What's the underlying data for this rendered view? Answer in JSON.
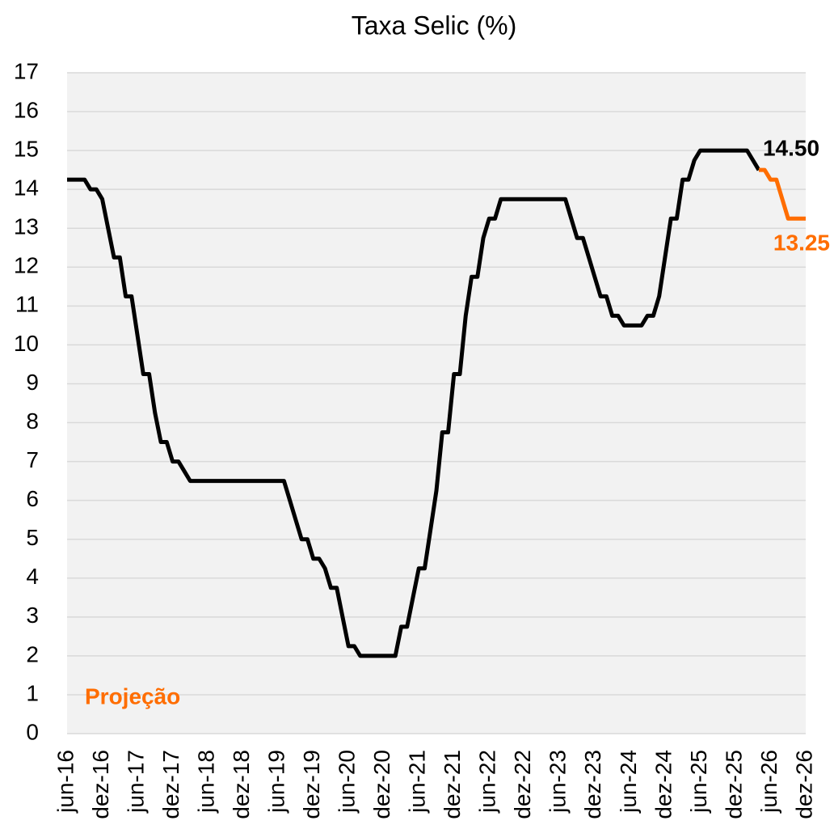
{
  "chart_data": {
    "type": "line",
    "title": "Taxa Selic (%)",
    "categories": [
      "jun-16",
      null,
      null,
      null,
      null,
      null,
      "dez-16",
      null,
      null,
      null,
      null,
      null,
      "jun-17",
      null,
      null,
      null,
      null,
      null,
      "dez-17",
      null,
      null,
      null,
      null,
      null,
      "jun-18",
      null,
      null,
      null,
      null,
      null,
      "dez-18",
      null,
      null,
      null,
      null,
      null,
      "jun-19",
      null,
      null,
      null,
      null,
      null,
      "dez-19",
      null,
      null,
      null,
      null,
      null,
      "jun-20",
      null,
      null,
      null,
      null,
      null,
      "dez-20",
      null,
      null,
      null,
      null,
      null,
      "jun-21",
      null,
      null,
      null,
      null,
      null,
      "dez-21",
      null,
      null,
      null,
      null,
      null,
      "jun-22",
      null,
      null,
      null,
      null,
      null,
      "dez-22",
      null,
      null,
      null,
      null,
      null,
      "jun-23",
      null,
      null,
      null,
      null,
      null,
      "dez-23",
      null,
      null,
      null,
      null,
      null,
      "jun-24",
      null,
      null,
      null,
      null,
      null,
      "dez-24",
      null,
      null,
      null,
      null,
      null,
      "jun-25",
      null,
      null,
      null,
      null,
      null,
      "dez-25",
      null,
      null,
      null,
      null,
      null,
      "jun-26",
      null,
      null,
      null,
      null,
      null,
      "dez-26"
    ],
    "series": [
      {
        "color": "#000000",
        "values": [
          14.25,
          14.25,
          14.25,
          14.25,
          14,
          14,
          13.75,
          13,
          12.25,
          12.25,
          11.25,
          11.25,
          10.25,
          9.25,
          9.25,
          8.25,
          7.5,
          7.5,
          7,
          7,
          6.75,
          6.5,
          6.5,
          6.5,
          6.5,
          6.5,
          6.5,
          6.5,
          6.5,
          6.5,
          6.5,
          6.5,
          6.5,
          6.5,
          6.5,
          6.5,
          6.5,
          6.5,
          6,
          5.5,
          5,
          5,
          4.5,
          4.5,
          4.25,
          3.75,
          3.75,
          3,
          2.25,
          2.25,
          2,
          2,
          2,
          2,
          2,
          2,
          2,
          2.75,
          2.75,
          3.5,
          4.25,
          4.25,
          5.25,
          6.25,
          7.75,
          7.75,
          9.25,
          9.25,
          10.75,
          11.75,
          11.75,
          12.75,
          13.25,
          13.25,
          13.75,
          13.75,
          13.75,
          13.75,
          13.75,
          13.75,
          13.75,
          13.75,
          13.75,
          13.75,
          13.75,
          13.75,
          13.25,
          12.75,
          12.75,
          12.25,
          11.75,
          11.25,
          11.25,
          10.75,
          10.75,
          10.5,
          10.5,
          10.5,
          10.5,
          10.75,
          10.75,
          11.25,
          12.25,
          13.25,
          13.25,
          14.25,
          14.25,
          14.75,
          15,
          15,
          15,
          15,
          15,
          15,
          15,
          15,
          15,
          14.75,
          14.5,
          null,
          null,
          null,
          null,
          null,
          null,
          null,
          null
        ],
        "value_labels": [
          null,
          null,
          null,
          null,
          null,
          null,
          null,
          null,
          null,
          null,
          null,
          null,
          null,
          null,
          null,
          null,
          null,
          null,
          null,
          null,
          null,
          null,
          null,
          null,
          null,
          null,
          null,
          null,
          null,
          null,
          null,
          null,
          null,
          null,
          null,
          null,
          null,
          null,
          null,
          null,
          null,
          null,
          null,
          null,
          null,
          null,
          null,
          null,
          null,
          null,
          null,
          null,
          null,
          null,
          null,
          null,
          null,
          null,
          null,
          null,
          null,
          null,
          null,
          null,
          null,
          null,
          null,
          null,
          null,
          null,
          null,
          null,
          null,
          null,
          null,
          null,
          null,
          null,
          null,
          null,
          null,
          null,
          null,
          null,
          null,
          null,
          null,
          null,
          null,
          null,
          null,
          null,
          null,
          null,
          null,
          null,
          null,
          null,
          null,
          null,
          null,
          null,
          null,
          null,
          null,
          null,
          null,
          null,
          null,
          null,
          null,
          null,
          null,
          null,
          null,
          null,
          null,
          null,
          "14.50",
          null,
          null,
          null,
          null,
          null,
          null,
          null,
          null
        ]
      },
      {
        "name": "Projeção",
        "color": "#ff6d00",
        "values": [
          null,
          null,
          null,
          null,
          null,
          null,
          null,
          null,
          null,
          null,
          null,
          null,
          null,
          null,
          null,
          null,
          null,
          null,
          null,
          null,
          null,
          null,
          null,
          null,
          null,
          null,
          null,
          null,
          null,
          null,
          null,
          null,
          null,
          null,
          null,
          null,
          null,
          null,
          null,
          null,
          null,
          null,
          null,
          null,
          null,
          null,
          null,
          null,
          null,
          null,
          null,
          null,
          null,
          null,
          null,
          null,
          null,
          null,
          null,
          null,
          null,
          null,
          null,
          null,
          null,
          null,
          null,
          null,
          null,
          null,
          null,
          null,
          null,
          null,
          null,
          null,
          null,
          null,
          null,
          null,
          null,
          null,
          null,
          null,
          null,
          null,
          null,
          null,
          null,
          null,
          null,
          null,
          null,
          null,
          null,
          null,
          null,
          null,
          null,
          null,
          null,
          null,
          null,
          null,
          null,
          null,
          null,
          null,
          null,
          null,
          null,
          null,
          null,
          null,
          null,
          null,
          null,
          null,
          14.5,
          14.5,
          14.25,
          14.25,
          13.75,
          13.25,
          13.25,
          13.25,
          13.25
        ],
        "value_labels": [
          null,
          null,
          null,
          null,
          null,
          null,
          null,
          null,
          null,
          null,
          null,
          null,
          null,
          null,
          null,
          null,
          null,
          null,
          null,
          null,
          null,
          null,
          null,
          null,
          null,
          null,
          null,
          null,
          null,
          null,
          null,
          null,
          null,
          null,
          null,
          null,
          null,
          null,
          null,
          null,
          null,
          null,
          null,
          null,
          null,
          null,
          null,
          null,
          null,
          null,
          null,
          null,
          null,
          null,
          null,
          null,
          null,
          null,
          null,
          null,
          null,
          null,
          null,
          null,
          null,
          null,
          null,
          null,
          null,
          null,
          null,
          null,
          null,
          null,
          null,
          null,
          null,
          null,
          null,
          null,
          null,
          null,
          null,
          null,
          null,
          null,
          null,
          null,
          null,
          null,
          null,
          null,
          null,
          null,
          null,
          null,
          null,
          null,
          null,
          null,
          null,
          null,
          null,
          null,
          null,
          null,
          null,
          null,
          null,
          null,
          null,
          null,
          null,
          null,
          null,
          null,
          null,
          null,
          null,
          null,
          null,
          null,
          null,
          null,
          null,
          null,
          "13.25"
        ]
      }
    ],
    "ylim": [
      0,
      17
    ],
    "yticks": [
      0,
      1,
      2,
      3,
      4,
      5,
      6,
      7,
      8,
      9,
      10,
      11,
      12,
      13,
      14,
      15,
      16,
      17
    ],
    "grid": true
  }
}
